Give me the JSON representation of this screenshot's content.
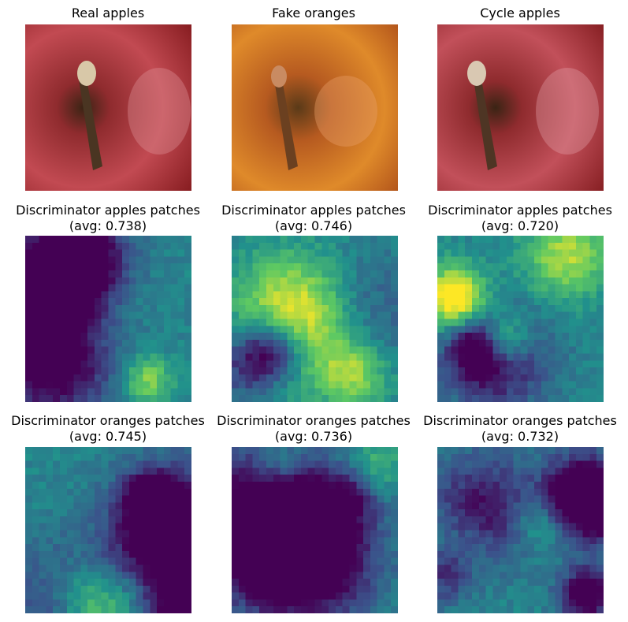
{
  "panels": [
    {
      "title": "Real apples",
      "subtitle": "",
      "kind": "photo",
      "tone": "red"
    },
    {
      "title": "Fake oranges",
      "subtitle": "",
      "kind": "photo",
      "tone": "orange"
    },
    {
      "title": "Cycle apples",
      "subtitle": "",
      "kind": "photo",
      "tone": "red"
    },
    {
      "title": "Discriminator apples patches",
      "subtitle": "(avg: 0.738)",
      "kind": "heatmap",
      "seed": 11
    },
    {
      "title": "Discriminator apples patches",
      "subtitle": "(avg: 0.746)",
      "kind": "heatmap",
      "seed": 23
    },
    {
      "title": "Discriminator apples patches",
      "subtitle": "(avg: 0.720)",
      "kind": "heatmap",
      "seed": 37
    },
    {
      "title": "Discriminator oranges patches",
      "subtitle": "(avg: 0.745)",
      "kind": "heatmap",
      "seed": 41
    },
    {
      "title": "Discriminator oranges patches",
      "subtitle": "(avg: 0.736)",
      "kind": "heatmap",
      "seed": 53
    },
    {
      "title": "Discriminator oranges patches",
      "subtitle": "(avg: 0.732)",
      "kind": "heatmap",
      "seed": 67
    }
  ],
  "colors": {
    "photo_red": "#b23a40",
    "photo_orange": "#d9791f",
    "viridis_low": "#440154",
    "viridis_mid": "#21918c",
    "viridis_high": "#fde725"
  }
}
